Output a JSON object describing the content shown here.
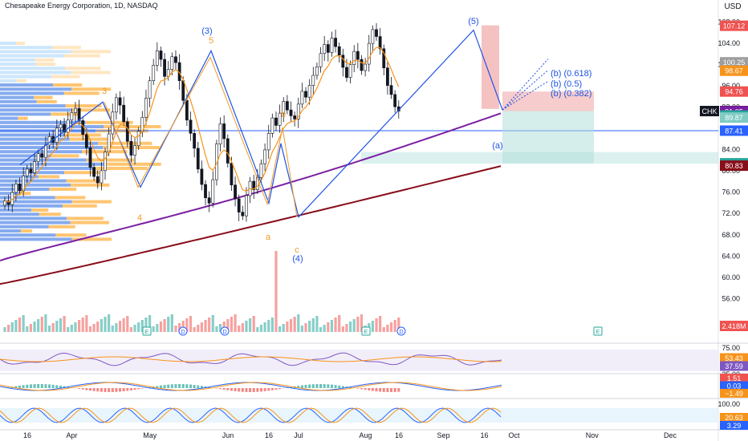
{
  "header": {
    "title": "Chesapeake Energy Corporation, 1D, NASDAQ",
    "currency": "USD",
    "currency_color": "#131722"
  },
  "colors": {
    "bull": "#26a69a",
    "bear": "#ef5350",
    "ma_orange": "#f7931a",
    "ma_purple": "#7b1fa2",
    "ma_maroon": "#880e1a",
    "wave_blue": "#1e53e5",
    "wave_orange": "#f09c2a",
    "level_blue": "#2962ff",
    "box_red": "#ef9a9a",
    "box_green": "#b2dfdb"
  },
  "chart_data": {
    "type": "candlestick",
    "symbol": "CHK",
    "interval": "1D",
    "y_axis": {
      "min": 52,
      "max": 110,
      "ticks": [
        56,
        60,
        64,
        68,
        72,
        76,
        80,
        84,
        88,
        92,
        96,
        100,
        104,
        108
      ]
    },
    "x_axis": {
      "ticks": [
        {
          "label": "16",
          "bar": 0
        },
        {
          "label": "Apr",
          "bar": 12
        },
        {
          "label": "May",
          "bar": 33
        },
        {
          "label": "Jun",
          "bar": 54
        },
        {
          "label": "16",
          "bar": 65
        },
        {
          "label": "Jul",
          "bar": 73
        },
        {
          "label": "Aug",
          "bar": 91
        },
        {
          "label": "16",
          "bar": 100
        },
        {
          "label": "Sep",
          "bar": 112
        },
        {
          "label": "16",
          "bar": 123
        },
        {
          "label": "Oct",
          "bar": 131
        },
        {
          "label": "Nov",
          "bar": 152
        },
        {
          "label": "Dec",
          "bar": 173
        }
      ]
    },
    "closes": [
      74.2,
      73.5,
      75.8,
      77.4,
      76.1,
      78.9,
      80.2,
      79.5,
      81.6,
      83.1,
      82.4,
      84.7,
      86.3,
      85.2,
      87.9,
      88.6,
      87.1,
      89.4,
      90.8,
      91.6,
      89.3,
      86.7,
      84.2,
      80.5,
      78.8,
      77.6,
      79.9,
      83.4,
      86.8,
      90.9,
      93.6,
      92.2,
      89.1,
      85.4,
      82.8,
      84.6,
      87.3,
      89.9,
      93.5,
      96.8,
      99.7,
      102.4,
      100.8,
      97.6,
      98.9,
      101.3,
      100.2,
      96.8,
      93.1,
      89.4,
      86.9,
      84.1,
      80.2,
      77.3,
      74.8,
      73.8,
      78.2,
      84.9,
      88.7,
      85.9,
      81.3,
      77.2,
      74.6,
      72.1,
      71.4,
      75.2,
      77.9,
      76.3,
      78.6,
      81.2,
      83.8,
      86.9,
      89.8,
      88.4,
      90.7,
      92.9,
      91.3,
      90.2,
      89.6,
      92.4,
      94.8,
      93.7,
      95.9,
      97.8,
      99.4,
      101.9,
      103.6,
      102.1,
      104.8,
      103.2,
      101.6,
      99.3,
      97.4,
      99.8,
      102.3,
      100.8,
      98.7,
      99.9,
      103.8,
      106.4,
      105.1,
      102.8,
      99.2,
      95.9,
      94.2,
      91.9,
      91.09
    ],
    "overlays": [
      {
        "name": "EMA short",
        "color": "#f7931a"
      },
      {
        "name": "SMA 100",
        "color": "#7b1fa2"
      },
      {
        "name": "SMA 200",
        "color": "#880e1a"
      }
    ],
    "elliott_labels": [
      {
        "text": "(3)",
        "color": "#1e53e5"
      },
      {
        "text": "5",
        "color": "#f09c2a"
      },
      {
        "text": "3",
        "color": "#f09c2a"
      },
      {
        "text": "4",
        "color": "#f09c2a"
      },
      {
        "text": "b",
        "color": "#f09c2a"
      },
      {
        "text": "a",
        "color": "#f09c2a"
      },
      {
        "text": "c",
        "color": "#f09c2a"
      },
      {
        "text": "(4)",
        "color": "#1e53e5"
      },
      {
        "text": "(5)",
        "color": "#1e53e5"
      },
      {
        "text": "(a)",
        "color": "#1e53e5"
      },
      {
        "text": "(b) (0.618)",
        "color": "#1e53e5"
      },
      {
        "text": "(b) (0.5)",
        "color": "#1e53e5"
      },
      {
        "text": "(b) (0.382)",
        "color": "#1e53e5"
      }
    ],
    "price_labels": [
      {
        "text": "107.12",
        "bg": "#ef5350",
        "fg": "#ffffff",
        "value": 107.12
      },
      {
        "text": "100.25",
        "bg": "#9e9e9e",
        "fg": "#ffffff",
        "value": 100.25
      },
      {
        "text": "98.67",
        "bg": "#f7931a",
        "fg": "#ffffff",
        "value": 98.67
      },
      {
        "text": "94.76",
        "bg": "#ef5350",
        "fg": "#ffffff",
        "value": 94.76
      },
      {
        "text": "91.09",
        "bg": "#131722",
        "fg": "#ffffff",
        "value": 91.09,
        "ticker": "CHK"
      },
      {
        "text": "91.05",
        "bg": "#7b1fa2",
        "fg": "#ffffff",
        "value": 91.05
      },
      {
        "text": "90.24",
        "bg": "#26a69a",
        "fg": "#ffffff",
        "value": 90.24
      },
      {
        "text": "89.87",
        "bg": "#80cbc4",
        "fg": "#ffffff",
        "value": 89.87
      },
      {
        "text": "87.41",
        "bg": "#2962ff",
        "fg": "#ffffff",
        "value": 87.41
      },
      {
        "text": "81.28",
        "bg": "#26a69a",
        "fg": "#ffffff",
        "value": 81.28
      },
      {
        "text": "80.83",
        "bg": "#880e1a",
        "fg": "#ffffff",
        "value": 80.83
      }
    ],
    "volume": {
      "label": "2.418M"
    },
    "rsi": {
      "ticks": [
        "75.00",
        "25.00"
      ],
      "labels": [
        {
          "text": "53.43",
          "bg": "#f7931a"
        },
        {
          "text": "37.59",
          "bg": "#7e57c2"
        }
      ]
    },
    "macd": {
      "labels": [
        {
          "text": "1.51",
          "bg": "#ef5350"
        },
        {
          "text": "0.03",
          "bg": "#2962ff"
        },
        {
          "text": "−1.49",
          "bg": "#f7931a"
        }
      ]
    },
    "stoch": {
      "ticks": [
        "100.00"
      ],
      "labels": [
        {
          "text": "20.63",
          "bg": "#f7931a"
        },
        {
          "text": "3.29",
          "bg": "#2962ff"
        }
      ]
    },
    "event_markers": [
      "E",
      "D",
      "D",
      "E",
      "D",
      "E"
    ]
  }
}
